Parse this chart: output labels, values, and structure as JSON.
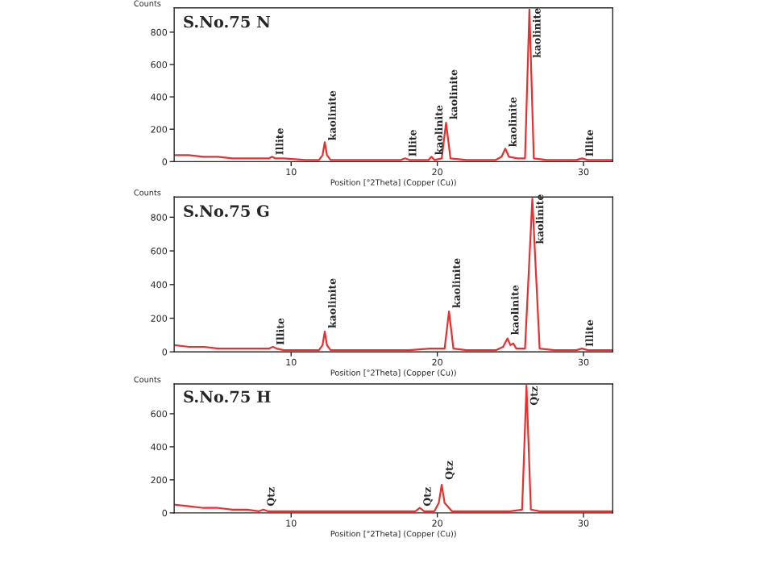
{
  "chart_data": [
    {
      "type": "line",
      "title": "S.No.75 N",
      "xlabel": "Position [°2Theta] (Copper (Cu))",
      "ylabel": "Counts",
      "xlim": [
        2,
        32
      ],
      "ylim": [
        0,
        950
      ],
      "xticks": [
        10,
        20,
        30
      ],
      "yticks": [
        0,
        200,
        400,
        600,
        800
      ],
      "grid": false,
      "marker": "none",
      "line_style": "solid",
      "series": [
        {
          "color": "#e8302f",
          "x": [
            2,
            3,
            4,
            5,
            6,
            7,
            8,
            8.5,
            8.7,
            8.9,
            9.5,
            11,
            11.9,
            12.15,
            12.3,
            12.45,
            12.7,
            14,
            16,
            17.5,
            17.8,
            18.1,
            19,
            19.4,
            19.6,
            19.8,
            20.3,
            20.6,
            20.9,
            22,
            24,
            24.4,
            24.65,
            24.9,
            25.5,
            26.0,
            26.3,
            26.6,
            27.5,
            29.5,
            29.9,
            30.3,
            32
          ],
          "values": [
            40,
            40,
            30,
            30,
            20,
            20,
            20,
            20,
            30,
            20,
            20,
            10,
            10,
            40,
            120,
            40,
            10,
            10,
            10,
            10,
            20,
            10,
            10,
            10,
            30,
            10,
            20,
            240,
            20,
            10,
            10,
            30,
            80,
            30,
            20,
            20,
            940,
            20,
            10,
            10,
            20,
            10,
            10
          ]
        }
      ],
      "annotations": [
        {
          "text": "Illite",
          "x": 8.7,
          "y": 40
        },
        {
          "text": "kaolinite",
          "x": 12.3,
          "y": 130
        },
        {
          "text": "Illite",
          "x": 17.8,
          "y": 30
        },
        {
          "text": "kaolinite",
          "x": 19.6,
          "y": 40
        },
        {
          "text": "kaolinite",
          "x": 20.6,
          "y": 260
        },
        {
          "text": "kaolinite",
          "x": 24.65,
          "y": 90
        },
        {
          "text": "kaolinite",
          "x": 26.3,
          "y": 640
        },
        {
          "text": "Illite",
          "x": 29.9,
          "y": 30
        }
      ]
    },
    {
      "type": "line",
      "title": "S.No.75 G",
      "xlabel": "Position [°2Theta] (Copper (Cu))",
      "ylabel": "Counts",
      "xlim": [
        2,
        32
      ],
      "ylim": [
        0,
        920
      ],
      "xticks": [
        10,
        20,
        30
      ],
      "yticks": [
        0,
        200,
        400,
        600,
        800
      ],
      "grid": false,
      "marker": "none",
      "line_style": "solid",
      "series": [
        {
          "color": "#e8302f",
          "x": [
            2,
            3,
            4,
            5,
            6,
            7,
            8,
            8.5,
            8.75,
            9.0,
            9.5,
            11,
            11.9,
            12.15,
            12.3,
            12.45,
            12.7,
            14,
            16,
            18,
            19.5,
            20.5,
            20.8,
            21.1,
            22,
            24,
            24.5,
            24.8,
            25.0,
            25.2,
            25.4,
            26.0,
            26.5,
            27.0,
            28,
            29.5,
            29.9,
            30.3,
            32
          ],
          "values": [
            40,
            30,
            30,
            20,
            20,
            20,
            20,
            20,
            30,
            20,
            10,
            10,
            10,
            40,
            120,
            40,
            10,
            10,
            10,
            10,
            20,
            20,
            240,
            20,
            10,
            10,
            30,
            80,
            40,
            50,
            20,
            20,
            910,
            20,
            10,
            10,
            20,
            10,
            10
          ]
        }
      ],
      "annotations": [
        {
          "text": "Illite",
          "x": 8.75,
          "y": 40
        },
        {
          "text": "kaolinite",
          "x": 12.3,
          "y": 140
        },
        {
          "text": "kaolinite",
          "x": 20.8,
          "y": 260
        },
        {
          "text": "kaolinite",
          "x": 24.8,
          "y": 100
        },
        {
          "text": "kaolinite",
          "x": 26.5,
          "y": 640
        },
        {
          "text": "Illite",
          "x": 29.9,
          "y": 30
        }
      ]
    },
    {
      "type": "line",
      "title": "S.No.75 H",
      "xlabel": "Position [°2Theta] (Copper (Cu))",
      "ylabel": "Counts",
      "xlim": [
        2,
        32
      ],
      "ylim": [
        0,
        780
      ],
      "xticks": [
        10,
        20,
        30
      ],
      "yticks": [
        0,
        200,
        400,
        600
      ],
      "grid": false,
      "marker": "none",
      "line_style": "solid",
      "series": [
        {
          "color": "#e8302f",
          "x": [
            2,
            3,
            4,
            5,
            6,
            7,
            7.8,
            8.1,
            8.4,
            9.5,
            12,
            14,
            16,
            18,
            18.5,
            18.8,
            19.1,
            19.8,
            20.1,
            20.3,
            20.5,
            21,
            23,
            25,
            25.8,
            26.1,
            26.4,
            27,
            29,
            32
          ],
          "values": [
            50,
            40,
            30,
            30,
            20,
            20,
            10,
            20,
            10,
            10,
            10,
            10,
            10,
            10,
            10,
            30,
            10,
            10,
            60,
            170,
            60,
            10,
            10,
            10,
            20,
            770,
            20,
            10,
            10,
            10
          ]
        }
      ],
      "annotations": [
        {
          "text": "Qtz",
          "x": 8.1,
          "y": 40
        },
        {
          "text": "Qtz",
          "x": 18.8,
          "y": 40
        },
        {
          "text": "Qtz",
          "x": 20.3,
          "y": 200
        },
        {
          "text": "Qtz",
          "x": 26.1,
          "y": 650
        }
      ]
    }
  ]
}
